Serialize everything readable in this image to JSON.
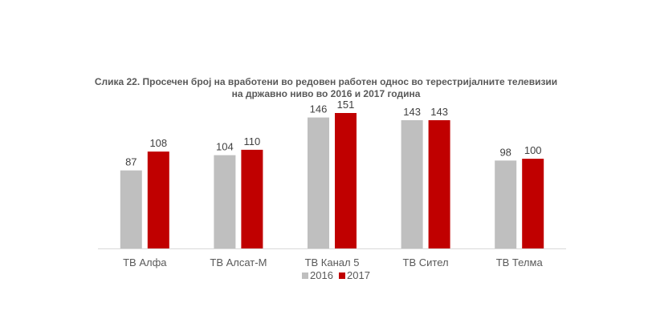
{
  "chart_data": {
    "type": "bar",
    "title_line1": "Слика 22. Просечен број на вработени во редовен работен однос во терестријалните телевизии",
    "title_line2": "на државно ниво во 2016 и 2017 година",
    "categories": [
      "ТВ Алфа",
      "ТВ Алсат-М",
      "ТВ Канал 5",
      "ТВ Сител",
      "ТВ Телма"
    ],
    "series": [
      {
        "name": "2016",
        "color": "#bfbfbf",
        "values": [
          87,
          104,
          146,
          143,
          98
        ]
      },
      {
        "name": "2017",
        "color": "#c00000",
        "values": [
          108,
          110,
          151,
          143,
          100
        ]
      }
    ],
    "ylim": [
      0,
      151
    ],
    "grid": false,
    "legend": "bottom"
  }
}
